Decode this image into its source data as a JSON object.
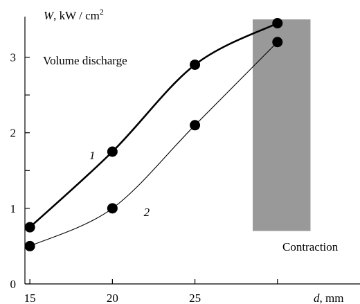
{
  "chart_data": {
    "type": "line",
    "title": "",
    "ylabel": {
      "symbol": "W",
      "unit": ", kW / cm",
      "unit_exp": "2"
    },
    "xlabel": {
      "symbol": "d",
      "unit": ", mm"
    },
    "x_ticks": [
      {
        "value": 15,
        "label": "15"
      },
      {
        "value": 20,
        "label": "20"
      },
      {
        "value": 25,
        "label": "25"
      },
      {
        "value": 30,
        "label": ""
      }
    ],
    "y_ticks": [
      {
        "value": 0,
        "label": "0"
      },
      {
        "value": 0.5,
        "label": ""
      },
      {
        "value": 1,
        "label": "1"
      },
      {
        "value": 1.5,
        "label": ""
      },
      {
        "value": 2,
        "label": "2"
      },
      {
        "value": 2.5,
        "label": ""
      },
      {
        "value": 3,
        "label": "3"
      }
    ],
    "xlim": [
      14.7,
      35
    ],
    "ylim": [
      0,
      3.5
    ],
    "grid": false,
    "series": [
      {
        "name": "1",
        "x": [
          15,
          20,
          25,
          30
        ],
        "y": [
          0.75,
          1.75,
          2.9,
          3.45
        ],
        "label_at": {
          "x": 18.6,
          "y": 1.65
        }
      },
      {
        "name": "2",
        "x": [
          15,
          20,
          25,
          30
        ],
        "y": [
          0.5,
          1.0,
          2.1,
          3.2
        ],
        "label_at": {
          "x": 21.9,
          "y": 0.9
        }
      }
    ],
    "annotations": {
      "volume_discharge": "Volume discharge",
      "contraction": "Contraction"
    },
    "shaded_region": {
      "x_from": 28.5,
      "x_to": 32,
      "y_from": 0.7,
      "y_to": 3.5,
      "color": "#999999"
    }
  }
}
